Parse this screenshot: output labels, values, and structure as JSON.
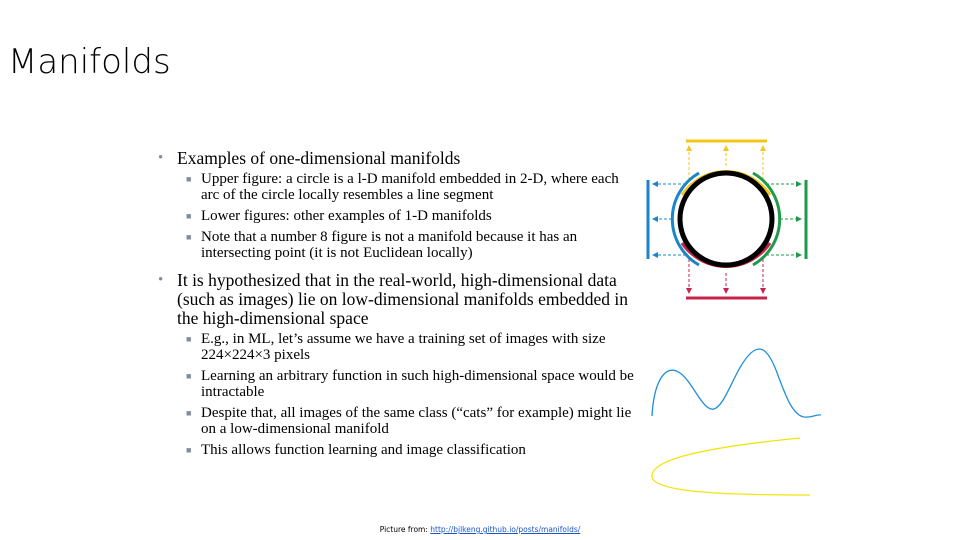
{
  "slide": {
    "title": "Manifolds"
  },
  "bullets": [
    {
      "text": "Examples of one-dimensional manifolds",
      "subitems": [
        "Upper figure: a circle is a l-D manifold embedded in 2-D, where each arc of the circle locally resembles a line segment",
        "Lower figures: other examples of 1-D manifolds",
        "Note that a number 8 figure is not a manifold because it has an intersecting point (it is not Euclidean locally)"
      ]
    },
    {
      "text": "It is hypothesized that in the real-world, high-dimensional data (such as images) lie on low-dimensional manifolds embedded in the high-dimensional space",
      "subitems": [
        "E.g., in ML, let’s assume we have a training set of images with size 224×224×3 pixels",
        "Learning an arbitrary function in such high-dimensional space would be intractable",
        "Despite that, all images of the same class (“cats” for example) might lie on a low-dimensional manifold",
        "This allows function learning and image classification"
      ]
    }
  ],
  "footer": {
    "prefix": "Picture from: ",
    "link_text": "http://bjlkeng.github.io/posts/manifolds/"
  },
  "colors": {
    "bullet": "#7f8ba0",
    "arc_top": "#f5c518",
    "arc_left": "#1a86c8",
    "arc_right": "#1e9a4a",
    "arc_bottom": "#c8234a",
    "wave": "#1f8fd6",
    "curve": "#f2e40e",
    "link": "#1a55c4"
  }
}
